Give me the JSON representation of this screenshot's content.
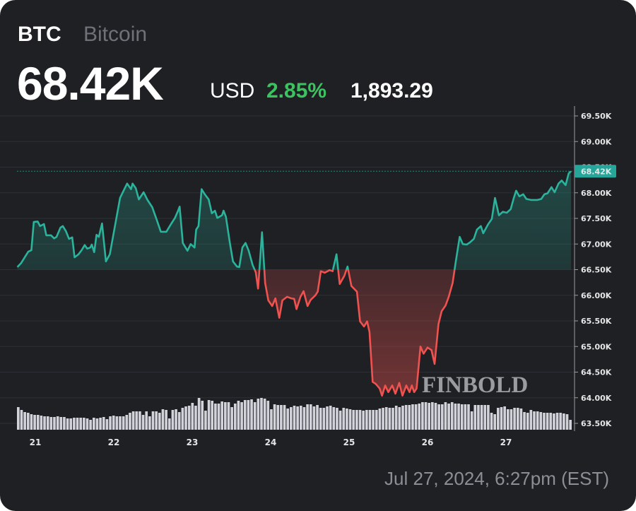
{
  "header": {
    "symbol": "BTC",
    "name": "Bitcoin",
    "price": "68.42K",
    "currency": "USD",
    "change_percent": "2.85%",
    "change_value": "1,893.29"
  },
  "footer": {
    "timestamp": "Jul 27, 2024, 6:27pm (EST)"
  },
  "watermark": "FINBOLD",
  "colors": {
    "background": "#1e2024",
    "up": "#2bb39c",
    "down": "#f0524f",
    "positive_text": "#3cc35f",
    "volume": "#d2d3da"
  },
  "chart_data": {
    "type": "line",
    "title": "",
    "xlabel": "",
    "ylabel": "",
    "x_unit": "day of July 2024",
    "ylim": [
      63.5,
      69.5
    ],
    "y_ticks": [
      "69.50K",
      "69.00K",
      "68.50K",
      "68.00K",
      "67.50K",
      "67.00K",
      "66.50K",
      "66.00K",
      "65.50K",
      "65.00K",
      "64.50K",
      "64.00K",
      "63.50K"
    ],
    "y_tick_values": [
      69.5,
      69.0,
      68.5,
      68.0,
      67.5,
      67.0,
      66.5,
      66.0,
      65.5,
      65.0,
      64.5,
      64.0,
      63.5
    ],
    "x_ticks": [
      "21",
      "22",
      "23",
      "24",
      "25",
      "26",
      "27"
    ],
    "x_tick_values": [
      21,
      22,
      23,
      24,
      25,
      26,
      27
    ],
    "grid": true,
    "baseline": 66.5,
    "last_price_label": "68.42K",
    "last_price": 68.42,
    "series": [
      {
        "x": [
          20.77,
          20.82,
          20.86,
          20.91,
          20.95,
          20.98,
          21.03,
          21.06,
          21.11,
          21.14,
          21.2,
          21.24,
          21.27,
          21.32,
          21.35,
          21.39,
          21.43,
          21.47,
          21.5,
          21.55,
          21.59,
          21.63,
          21.66,
          21.7,
          21.72,
          21.75,
          21.78,
          21.81,
          21.85,
          21.9,
          21.95,
          22.08,
          22.17,
          22.22,
          22.24,
          22.28,
          22.32,
          22.38,
          22.43,
          22.49,
          22.55,
          22.6,
          22.67,
          22.73,
          22.78,
          22.82,
          22.84,
          22.88,
          22.94,
          22.98,
          23.03,
          23.05,
          23.08,
          23.12,
          23.16,
          23.21,
          23.25,
          23.29,
          23.32,
          23.38,
          23.4,
          23.43,
          23.48,
          23.52,
          23.57,
          23.6,
          23.64,
          23.68,
          23.72,
          23.77,
          23.81,
          23.84,
          23.89,
          23.93,
          23.97,
          24.02,
          24.06,
          24.11,
          24.15,
          24.21,
          24.26,
          24.3,
          24.33,
          24.38,
          24.42,
          24.47,
          24.51,
          24.57,
          24.6,
          24.64,
          24.69,
          24.75,
          24.79,
          24.84,
          24.88,
          24.94,
          24.98,
          25.03,
          25.1,
          25.14,
          25.19,
          25.23,
          25.26,
          25.3,
          25.34,
          25.39,
          25.42,
          25.46,
          25.5,
          25.55,
          25.59,
          25.64,
          25.68,
          25.73,
          25.77,
          25.8,
          25.83,
          25.86,
          25.91,
          25.95,
          26.0,
          26.05,
          26.09,
          26.14,
          26.18,
          26.23,
          26.27,
          26.32,
          26.36,
          26.41,
          26.45,
          26.5,
          26.54,
          26.59,
          26.63,
          26.68,
          26.71,
          26.77,
          26.82,
          26.86,
          26.91,
          26.96,
          27.01,
          27.06,
          27.1,
          27.13,
          27.17,
          27.22,
          27.26,
          27.32,
          27.4,
          27.45,
          27.49,
          27.53,
          27.58,
          27.62,
          27.67,
          27.71,
          27.76,
          27.8,
          27.83
        ],
        "y": [
          66.55,
          66.63,
          66.73,
          66.85,
          66.88,
          67.43,
          67.44,
          67.35,
          67.39,
          67.17,
          67.17,
          67.11,
          67.14,
          67.32,
          67.35,
          67.25,
          67.1,
          67.13,
          66.74,
          66.8,
          66.88,
          66.98,
          66.91,
          66.93,
          66.99,
          66.84,
          67.18,
          67.14,
          67.4,
          66.66,
          66.8,
          67.9,
          68.18,
          68.07,
          68.18,
          68.09,
          67.87,
          68.01,
          67.86,
          67.72,
          67.46,
          67.24,
          67.24,
          67.39,
          67.51,
          67.65,
          67.73,
          67.02,
          66.87,
          67.0,
          66.93,
          67.28,
          67.35,
          68.07,
          67.97,
          67.87,
          67.6,
          67.65,
          67.51,
          67.56,
          67.65,
          67.53,
          67.02,
          66.66,
          66.56,
          66.55,
          66.93,
          67.02,
          66.87,
          66.59,
          66.45,
          66.13,
          67.23,
          66.24,
          65.9,
          65.79,
          65.94,
          65.56,
          65.9,
          65.97,
          65.94,
          65.93,
          65.73,
          65.97,
          66.08,
          65.79,
          65.91,
          66.0,
          66.07,
          66.47,
          66.44,
          66.49,
          66.47,
          66.8,
          66.22,
          66.38,
          66.56,
          66.18,
          66.07,
          65.49,
          65.39,
          65.49,
          65.28,
          64.31,
          64.27,
          64.18,
          64.04,
          64.24,
          64.11,
          64.24,
          64.08,
          64.29,
          64.04,
          64.24,
          64.11,
          64.24,
          64.11,
          64.18,
          65.0,
          64.86,
          64.98,
          64.93,
          64.66,
          65.44,
          65.69,
          65.8,
          65.97,
          66.24,
          66.66,
          67.14,
          67.0,
          66.99,
          67.03,
          67.1,
          67.28,
          67.35,
          67.21,
          67.38,
          67.49,
          67.9,
          67.56,
          67.63,
          67.61,
          67.68,
          67.9,
          68.04,
          67.93,
          67.97,
          67.88,
          67.86,
          67.86,
          67.88,
          67.97,
          67.99,
          68.11,
          68.01,
          68.18,
          68.24,
          68.15,
          68.38,
          68.42
        ]
      }
    ],
    "volume_relative": [
      32,
      28,
      25,
      24,
      22,
      21,
      21,
      20,
      19,
      19,
      18,
      18,
      19,
      18,
      18,
      16,
      16,
      17,
      17,
      17,
      17,
      16,
      14,
      17,
      16,
      17,
      18,
      15,
      19,
      20,
      19,
      19,
      19,
      21,
      24,
      26,
      26,
      26,
      21,
      26,
      19,
      26,
      26,
      24,
      29,
      28,
      16,
      28,
      29,
      25,
      31,
      33,
      34,
      38,
      34,
      45,
      41,
      27,
      42,
      41,
      37,
      37,
      40,
      39,
      39,
      32,
      37,
      41,
      39,
      42,
      42,
      43,
      39,
      44,
      45,
      44,
      41,
      29,
      36,
      35,
      35,
      35,
      30,
      32,
      34,
      33,
      34,
      32,
      36,
      36,
      33,
      35,
      31,
      31,
      33,
      34,
      32,
      31,
      27,
      31,
      30,
      29,
      28,
      28,
      28,
      27,
      28,
      28,
      28,
      28,
      30,
      31,
      32,
      31,
      31,
      34,
      32,
      34,
      35,
      35,
      36,
      36,
      37,
      39,
      39,
      38,
      39,
      38,
      36,
      36,
      39,
      37,
      39,
      37,
      37,
      36,
      36,
      36,
      26,
      35,
      35,
      35,
      35,
      35,
      24,
      22,
      31,
      32,
      33,
      29,
      29,
      31,
      31,
      30,
      25,
      24,
      28,
      26,
      26,
      25,
      24,
      24,
      24,
      23,
      24,
      24,
      23,
      22,
      14
    ]
  }
}
